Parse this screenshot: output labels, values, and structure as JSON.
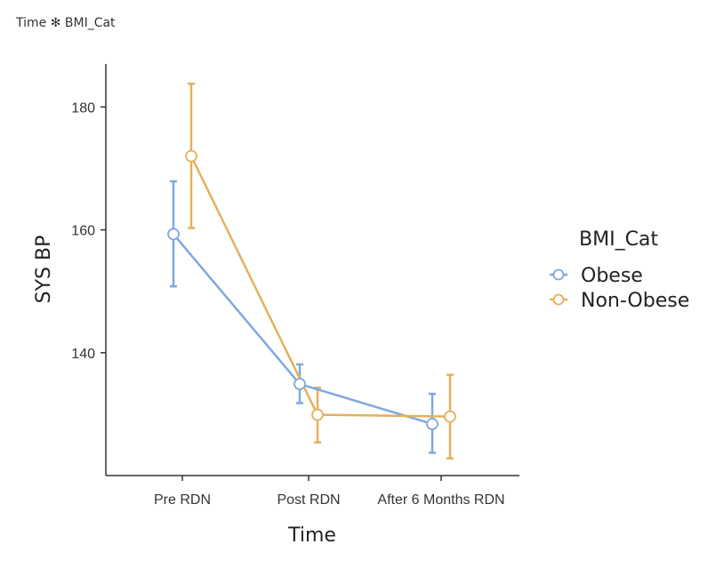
{
  "header": {
    "title": "Time ✻ BMI_Cat"
  },
  "chart_data": {
    "type": "line",
    "categories": [
      "Pre RDN",
      "Post RDN",
      "After 6 Months RDN"
    ],
    "xlabel": "Time",
    "ylabel": "SYS BP",
    "ylim": [
      120,
      187
    ],
    "yticks": [
      140,
      160,
      180
    ],
    "grid": false,
    "legend": {
      "title": "BMI_Cat",
      "position": "right"
    },
    "series": [
      {
        "name": "Obese",
        "color": "#7fa8e0",
        "values": [
          159.3,
          134.9,
          128.4
        ],
        "error_low": [
          150.8,
          131.8,
          123.7
        ],
        "error_high": [
          167.9,
          138.1,
          133.3
        ]
      },
      {
        "name": "Non-Obese",
        "color": "#e3b15c",
        "values": [
          172.0,
          129.9,
          129.6
        ],
        "error_low": [
          160.3,
          125.4,
          122.8
        ],
        "error_high": [
          183.8,
          134.3,
          136.4
        ]
      }
    ]
  }
}
